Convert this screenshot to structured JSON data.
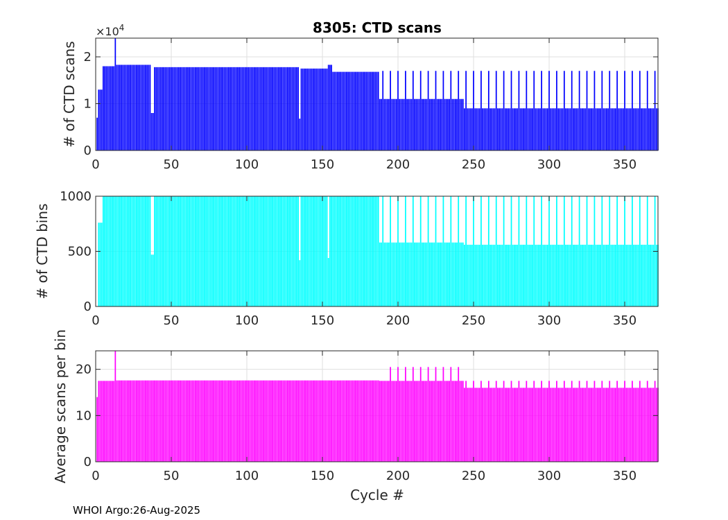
{
  "figure": {
    "title": "8305: CTD scans",
    "footer": "WHOI Argo:26-Aug-2025",
    "xlabel": "Cycle #"
  },
  "chart_data": [
    {
      "type": "bar",
      "ylabel": "# of CTD scans",
      "color": "#0000ff",
      "exponent_label": "×10",
      "exponent_power": "4",
      "ylim": [
        0,
        24000
      ],
      "xlim": [
        0,
        372
      ],
      "yticks": [
        {
          "v": 0,
          "label": "0"
        },
        {
          "v": 10000,
          "label": "1"
        },
        {
          "v": 20000,
          "label": "2"
        }
      ],
      "xticks": [
        0,
        50,
        100,
        150,
        200,
        250,
        300,
        350
      ],
      "x_start": 1,
      "segments": [
        {
          "from": 1,
          "to": 1,
          "value": 7000
        },
        {
          "from": 2,
          "to": 4,
          "value": 13000
        },
        {
          "from": 5,
          "to": 12,
          "value": 18000
        },
        {
          "from": 13,
          "to": 13,
          "value": 24000
        },
        {
          "from": 14,
          "to": 36,
          "value": 18300
        },
        {
          "from": 37,
          "to": 38,
          "value": 8000
        },
        {
          "from": 39,
          "to": 134,
          "value": 17800
        },
        {
          "from": 135,
          "to": 135,
          "value": 6800
        },
        {
          "from": 136,
          "to": 153,
          "value": 17500
        },
        {
          "from": 154,
          "to": 156,
          "value": 18300
        },
        {
          "from": 157,
          "to": 187,
          "value": 16800
        },
        {
          "from": 188,
          "to": 243,
          "value": 11000
        },
        {
          "from": 244,
          "to": 372,
          "value": 9000
        }
      ],
      "spikes": [
        {
          "every": 5,
          "from": 190,
          "to": 372,
          "value": 17000
        }
      ]
    },
    {
      "type": "bar",
      "ylabel": "# of CTD bins",
      "color": "#00ffff",
      "ylim": [
        0,
        1000
      ],
      "xlim": [
        0,
        372
      ],
      "yticks": [
        {
          "v": 0,
          "label": "0"
        },
        {
          "v": 500,
          "label": "500"
        },
        {
          "v": 1000,
          "label": "1000"
        }
      ],
      "xticks": [
        0,
        50,
        100,
        150,
        200,
        250,
        300,
        350
      ],
      "x_start": 1,
      "segments": [
        {
          "from": 1,
          "to": 1,
          "value": 0
        },
        {
          "from": 2,
          "to": 4,
          "value": 760
        },
        {
          "from": 5,
          "to": 36,
          "value": 1000
        },
        {
          "from": 37,
          "to": 38,
          "value": 470
        },
        {
          "from": 39,
          "to": 134,
          "value": 1000
        },
        {
          "from": 135,
          "to": 135,
          "value": 420
        },
        {
          "from": 136,
          "to": 153,
          "value": 1000
        },
        {
          "from": 154,
          "to": 154,
          "value": 440
        },
        {
          "from": 155,
          "to": 187,
          "value": 1000
        },
        {
          "from": 188,
          "to": 243,
          "value": 580
        },
        {
          "from": 244,
          "to": 372,
          "value": 560
        }
      ],
      "spikes": [
        {
          "every": 5,
          "from": 190,
          "to": 372,
          "value": 1000
        }
      ]
    },
    {
      "type": "bar",
      "ylabel": "Average scans per bin",
      "color": "#ff00ff",
      "ylim": [
        0,
        24
      ],
      "xlim": [
        0,
        372
      ],
      "yticks": [
        {
          "v": 0,
          "label": "0"
        },
        {
          "v": 10,
          "label": "10"
        },
        {
          "v": 20,
          "label": "20"
        }
      ],
      "xticks": [
        0,
        50,
        100,
        150,
        200,
        250,
        300,
        350
      ],
      "x_start": 1,
      "segments": [
        {
          "from": 1,
          "to": 1,
          "value": 14
        },
        {
          "from": 2,
          "to": 12,
          "value": 17.5
        },
        {
          "from": 13,
          "to": 13,
          "value": 24
        },
        {
          "from": 14,
          "to": 187,
          "value": 17.6
        },
        {
          "from": 188,
          "to": 243,
          "value": 17.5
        },
        {
          "from": 244,
          "to": 372,
          "value": 16
        }
      ],
      "spikes": [
        {
          "every": 5,
          "from": 195,
          "to": 240,
          "value": 20.5
        },
        {
          "every": 5,
          "from": 245,
          "to": 372,
          "value": 17.5
        }
      ]
    }
  ]
}
